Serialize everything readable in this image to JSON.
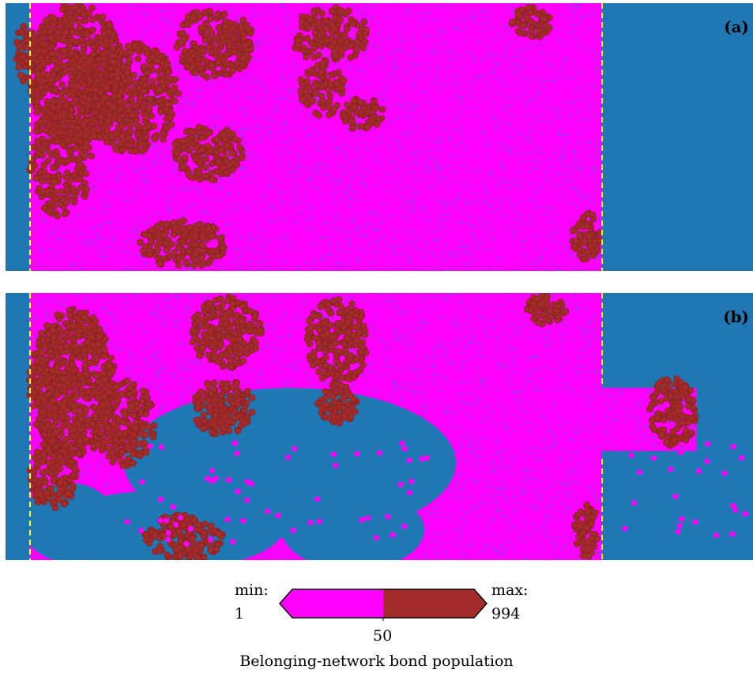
{
  "colors": {
    "background": "#1f77b4",
    "low": "#ff00ff",
    "high": "#a52a2a",
    "boundary": "#ffff00"
  },
  "panels": [
    {
      "label": "(a)"
    },
    {
      "label": "(b)"
    }
  ],
  "colorbar": {
    "min_label": "min:",
    "min_value": "1",
    "max_label": "max:",
    "max_value": "994",
    "threshold_value": "50",
    "title": "Belonging-network bond population"
  }
}
